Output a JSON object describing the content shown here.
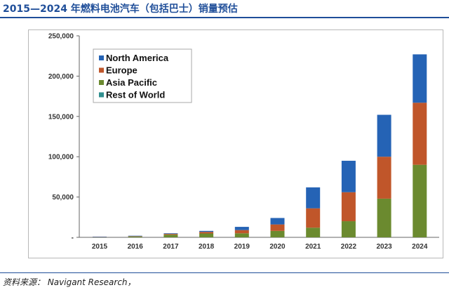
{
  "caption": "2015—2024 年燃料电池汽车（包括巴士）销量预估",
  "source": "资料来源：  Navigant Research，",
  "chart_data": {
    "type": "bar",
    "stacked": true,
    "categories": [
      "2015",
      "2016",
      "2017",
      "2018",
      "2019",
      "2020",
      "2021",
      "2022",
      "2023",
      "2024"
    ],
    "series": [
      {
        "name": "North America",
        "color": "#2563b5",
        "values": [
          200,
          400,
          700,
          1200,
          4000,
          8000,
          26000,
          39000,
          52000,
          60000
        ]
      },
      {
        "name": "Europe",
        "color": "#c0562a",
        "values": [
          200,
          500,
          1000,
          2000,
          4000,
          8000,
          24000,
          36000,
          52000,
          77000
        ]
      },
      {
        "name": "Asia Pacific",
        "color": "#6b8a2f",
        "values": [
          400,
          1100,
          3300,
          4800,
          5000,
          8000,
          12000,
          20000,
          48000,
          90000
        ]
      },
      {
        "name": "Rest of World",
        "color": "#2f8f8f",
        "values": [
          0,
          0,
          0,
          0,
          0,
          0,
          0,
          0,
          0,
          0
        ]
      }
    ],
    "ylim": [
      0,
      250000
    ],
    "yticks": [
      0,
      50000,
      100000,
      150000,
      200000,
      250000
    ],
    "ytick_labels": [
      "-",
      "50,000",
      "100,000",
      "150,000",
      "200,000",
      "250,000"
    ],
    "legend_position": "top-left",
    "grid": false
  }
}
